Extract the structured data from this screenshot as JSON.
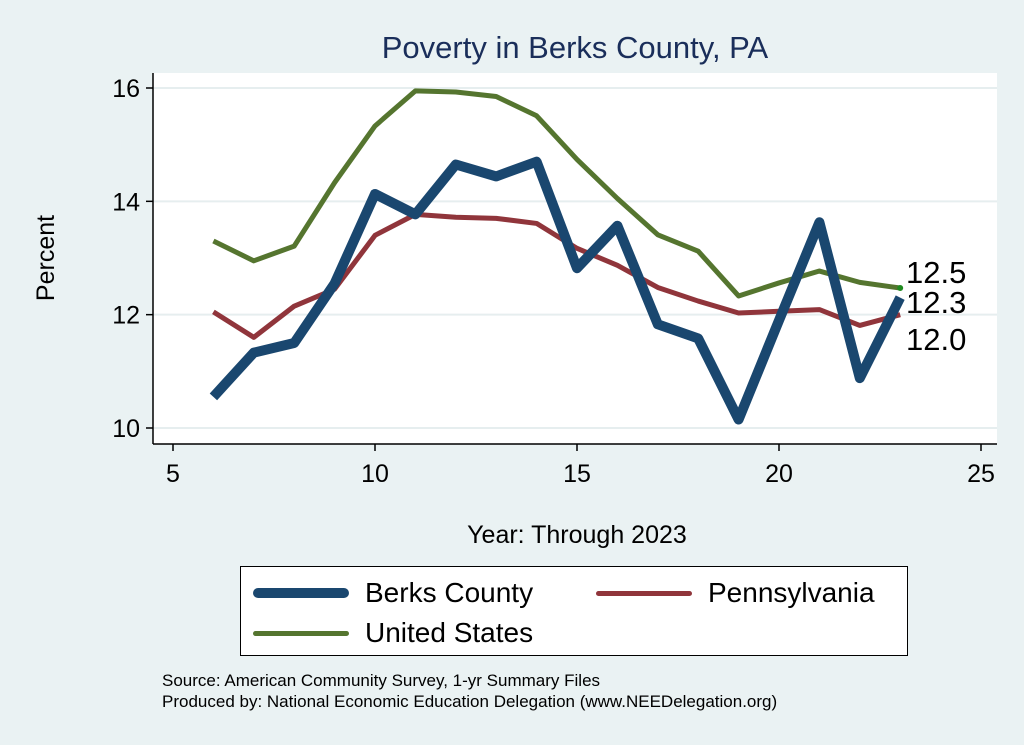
{
  "chart_data": {
    "type": "line",
    "title": "Poverty in Berks County, PA",
    "xlabel": "Year: Through 2023",
    "ylabel": "Percent",
    "xlim": [
      5,
      25
    ],
    "ylim": [
      10,
      16
    ],
    "xticks": [
      5,
      10,
      15,
      20,
      25
    ],
    "yticks": [
      10,
      12,
      14,
      16
    ],
    "grid": "horizontal",
    "legend_position": "bottom",
    "x": [
      6,
      7,
      8,
      9,
      10,
      11,
      12,
      13,
      14,
      15,
      16,
      17,
      18,
      19,
      20,
      21,
      22,
      23
    ],
    "series": [
      {
        "name": "Berks County",
        "color": "#1a476f",
        "values": [
          10.55,
          11.33,
          11.5,
          12.55,
          14.13,
          13.77,
          14.65,
          14.44,
          14.7,
          12.82,
          13.57,
          11.83,
          11.58,
          10.15,
          11.9,
          13.63,
          10.88,
          12.3
        ],
        "end_label": "12.3"
      },
      {
        "name": "Pennsylvania",
        "color": "#90353b",
        "values": [
          12.05,
          11.6,
          12.15,
          12.45,
          13.4,
          13.77,
          13.72,
          13.7,
          13.61,
          13.17,
          12.87,
          12.48,
          12.24,
          12.03,
          12.06,
          12.09,
          11.81,
          12.0
        ],
        "end_label": "12.0"
      },
      {
        "name": "United States",
        "color": "#55752f",
        "values": [
          13.3,
          12.95,
          13.21,
          14.33,
          15.33,
          15.95,
          15.93,
          15.85,
          15.51,
          14.74,
          14.05,
          13.41,
          13.12,
          12.33,
          12.56,
          12.77,
          12.57,
          12.47
        ],
        "end_label": "12.5"
      }
    ]
  },
  "legend": {
    "items": [
      {
        "label": "Berks County"
      },
      {
        "label": "Pennsylvania"
      },
      {
        "label": "United States"
      }
    ]
  },
  "footer": {
    "source": "Source: American Community Survey, 1-yr Summary Files",
    "producer": "Produced by: National Economic Education Delegation (www.NEEDelegation.org)"
  }
}
